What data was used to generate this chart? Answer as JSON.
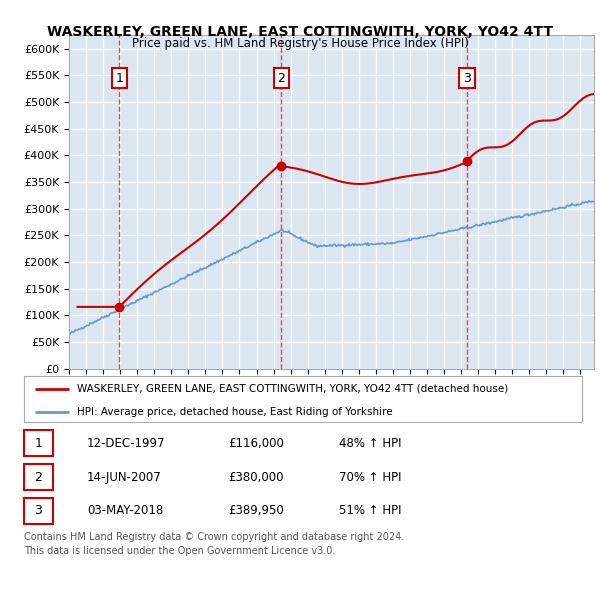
{
  "title": "WASKERLEY, GREEN LANE, EAST COTTINGWITH, YORK, YO42 4TT",
  "subtitle": "Price paid vs. HM Land Registry's House Price Index (HPI)",
  "ylim": [
    0,
    625000
  ],
  "yticks": [
    0,
    50000,
    100000,
    150000,
    200000,
    250000,
    300000,
    350000,
    400000,
    450000,
    500000,
    550000,
    600000
  ],
  "ytick_labels": [
    "£0",
    "£50K",
    "£100K",
    "£150K",
    "£200K",
    "£250K",
    "£300K",
    "£350K",
    "£400K",
    "£450K",
    "£500K",
    "£550K",
    "£600K"
  ],
  "xlim_start": 1995.0,
  "xlim_end": 2025.8,
  "plot_bg_color": "#dce6f1",
  "sale_dates": [
    1997.95,
    2007.45,
    2018.34
  ],
  "sale_prices": [
    116000,
    380000,
    389950
  ],
  "sale_labels": [
    "1",
    "2",
    "3"
  ],
  "legend_line1": "WASKERLEY, GREEN LANE, EAST COTTINGWITH, YORK, YO42 4TT (detached house)",
  "legend_line2": "HPI: Average price, detached house, East Riding of Yorkshire",
  "table_rows": [
    [
      "1",
      "12-DEC-1997",
      "£116,000",
      "48% ↑ HPI"
    ],
    [
      "2",
      "14-JUN-2007",
      "£380,000",
      "70% ↑ HPI"
    ],
    [
      "3",
      "03-MAY-2018",
      "£389,950",
      "51% ↑ HPI"
    ]
  ],
  "footer_line1": "Contains HM Land Registry data © Crown copyright and database right 2024.",
  "footer_line2": "This data is licensed under the Open Government Licence v3.0.",
  "red_color": "#cc0000",
  "blue_color": "#6699cc",
  "dashed_color": "#ee4444"
}
